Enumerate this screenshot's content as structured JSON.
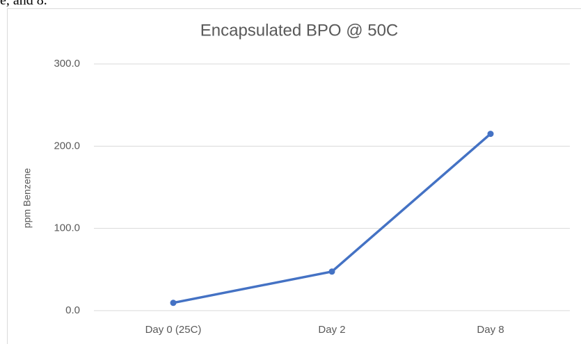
{
  "header_text": "e, and 8.",
  "chart_data": {
    "type": "line",
    "title": "Encapsulated BPO @ 50C",
    "y_label": "ppm Benzene",
    "categories": [
      "Day 0 (25C)",
      "Day 2",
      "Day 8"
    ],
    "series": [
      {
        "name": "ppm Benzene",
        "color": "#4472c4",
        "values": [
          9.5,
          47.5,
          215
        ]
      }
    ],
    "ylim": [
      0,
      300
    ],
    "yticks": [
      {
        "value": 0,
        "label": "0.0"
      },
      {
        "value": 100,
        "label": "100.0"
      },
      {
        "value": 200,
        "label": "200.0"
      },
      {
        "value": 300,
        "label": "300.0"
      }
    ],
    "grid": true,
    "legend": false
  }
}
